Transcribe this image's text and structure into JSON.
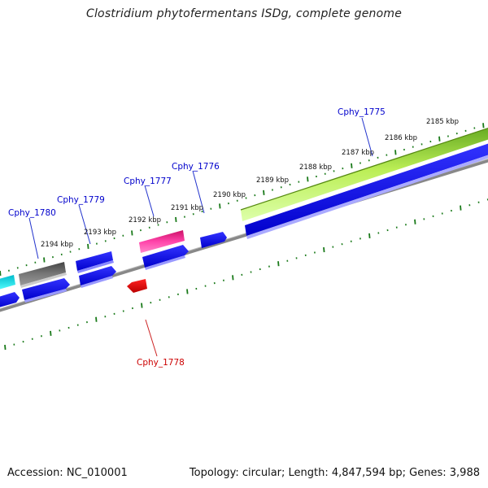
{
  "header": {
    "title": "Clostridium phytofermentans ISDg, complete genome"
  },
  "footer": {
    "accession": "Accession: NC_010001",
    "topology": "Topology: circular; Length: 4,847,594 bp; Genes: 3,988"
  },
  "colors": {
    "blue": "#0000ee",
    "cyan": "#00e5ee",
    "gray": "#666666",
    "magenta": "#ee2288",
    "red": "#ee0000",
    "lime": "#99dd33",
    "tick": "#1a7a1a",
    "label_blue": "#0000cc",
    "label_red": "#cc0000"
  },
  "scale_labels": [
    "2185 kbp",
    "2186 kbp",
    "2187 kbp",
    "2188 kbp",
    "2189 kbp",
    "2190 kbp",
    "2191 kbp",
    "2192 kbp",
    "2193 kbp",
    "2194 kbp"
  ],
  "gene_labels": [
    {
      "name": "Cphy_1775",
      "color": "label_blue"
    },
    {
      "name": "Cphy_1776",
      "color": "label_blue"
    },
    {
      "name": "Cphy_1777",
      "color": "label_blue"
    },
    {
      "name": "Cphy_1778",
      "color": "label_red"
    },
    {
      "name": "Cphy_1779",
      "color": "label_blue"
    },
    {
      "name": "Cphy_1780",
      "color": "label_blue"
    }
  ]
}
